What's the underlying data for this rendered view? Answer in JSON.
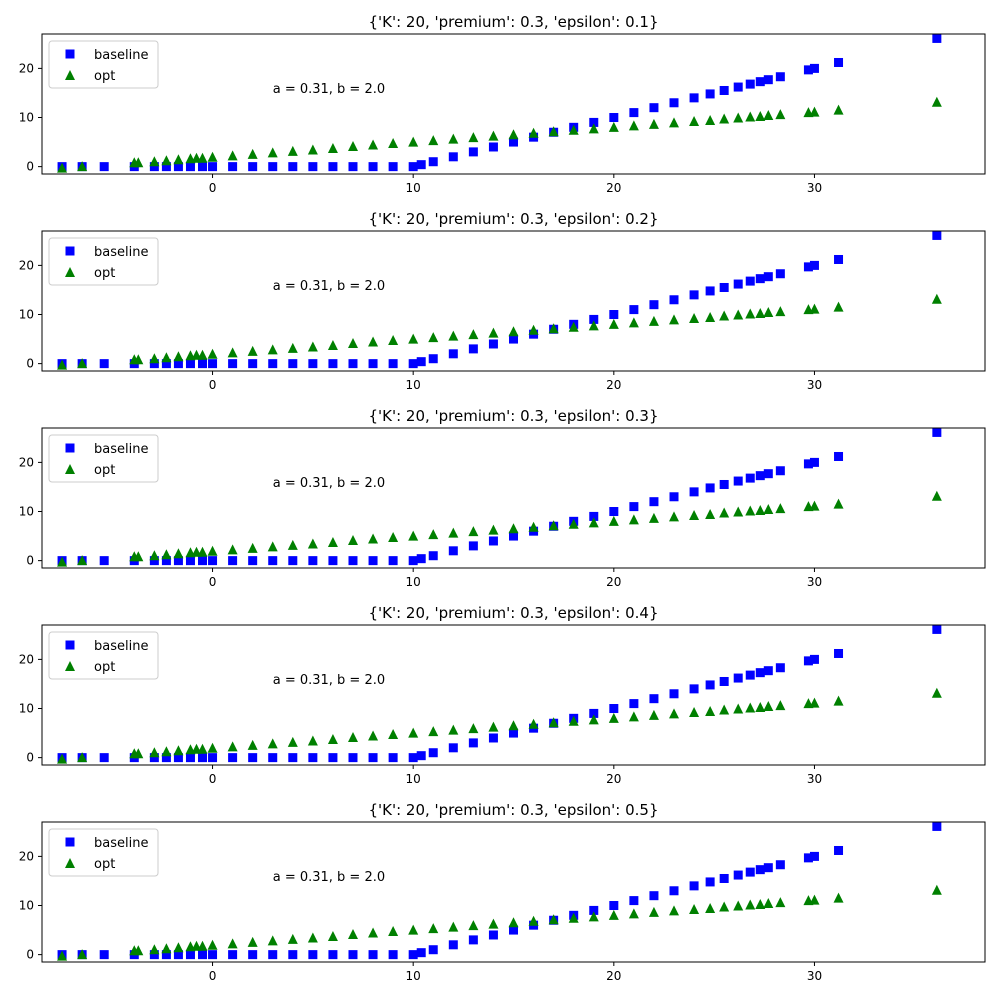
{
  "chart_data": [
    {
      "type": "scatter",
      "title": "{'K': 20, 'premium': 0.3, 'epsilon': 0.1}",
      "annotation": "a = 0.31, b = 2.0",
      "xlabel": "",
      "ylabel": "",
      "xlim": [
        -8.5,
        38.5
      ],
      "ylim": [
        -1.5,
        27
      ],
      "x_ticks": [
        0,
        10,
        20,
        30
      ],
      "y_ticks": [
        0,
        10,
        20
      ],
      "legend": {
        "placement": "upper left"
      },
      "grid": false,
      "series": [
        {
          "name": "baseline",
          "marker": "square",
          "color": "#0000ff",
          "x": [
            -7.5,
            -6.5,
            -5.4,
            -3.9,
            -2.9,
            -2.3,
            -1.7,
            -1.1,
            -0.5,
            0,
            1,
            2,
            3,
            4,
            5,
            6,
            7,
            8,
            9,
            10,
            10.4,
            11,
            12,
            13,
            14,
            15,
            16,
            17,
            18,
            19,
            20,
            21,
            22,
            23,
            24,
            24.8,
            25.5,
            26.2,
            26.8,
            27.3,
            27.7,
            28.3,
            29.7,
            30.0,
            31.2,
            36.1
          ],
          "y": [
            0,
            0,
            0,
            0,
            0,
            0,
            0,
            0,
            0,
            0,
            0,
            0,
            0,
            0,
            0,
            0,
            0,
            0,
            0,
            0,
            0.4,
            1,
            2,
            3,
            4,
            5,
            6,
            7,
            8,
            9,
            10,
            11,
            12,
            13,
            14,
            14.8,
            15.5,
            16.2,
            16.8,
            17.3,
            17.7,
            18.3,
            19.7,
            20.0,
            21.2,
            26.1
          ]
        },
        {
          "name": "opt",
          "marker": "triangle",
          "color": "#008000",
          "x": [
            -7.5,
            -6.5,
            -3.9,
            -3.7,
            -2.9,
            -2.3,
            -1.7,
            -1.1,
            -0.8,
            -0.5,
            0,
            1,
            2,
            3,
            4,
            5,
            6,
            7,
            8,
            9,
            10,
            11,
            12,
            13,
            14,
            15,
            16,
            17,
            18,
            19,
            20,
            21,
            22,
            23,
            24,
            24.8,
            25.5,
            26.2,
            26.8,
            27.3,
            27.7,
            28.3,
            29.7,
            30.0,
            31.2,
            36.1
          ],
          "y": [
            -0.2,
            0.1,
            0.9,
            0.9,
            1.1,
            1.3,
            1.5,
            1.7,
            1.8,
            1.8,
            2.0,
            2.3,
            2.6,
            2.9,
            3.2,
            3.5,
            3.8,
            4.2,
            4.5,
            4.8,
            5.1,
            5.4,
            5.7,
            6.0,
            6.3,
            6.6,
            6.9,
            7.2,
            7.5,
            7.8,
            8.1,
            8.4,
            8.7,
            9.0,
            9.3,
            9.5,
            9.8,
            10.0,
            10.2,
            10.3,
            10.5,
            10.7,
            11.1,
            11.2,
            11.6,
            13.2
          ]
        }
      ]
    },
    {
      "type": "scatter",
      "title": "{'K': 20, 'premium': 0.3, 'epsilon': 0.2}",
      "annotation": "a = 0.31, b = 2.0",
      "xlabel": "",
      "ylabel": "",
      "xlim": [
        -8.5,
        38.5
      ],
      "ylim": [
        -1.5,
        27
      ],
      "x_ticks": [
        0,
        10,
        20,
        30
      ],
      "y_ticks": [
        0,
        10,
        20
      ],
      "legend": {
        "placement": "upper left"
      },
      "grid": false,
      "series": [
        {
          "name": "baseline",
          "marker": "square",
          "color": "#0000ff",
          "x": [
            -7.5,
            -6.5,
            -5.4,
            -3.9,
            -2.9,
            -2.3,
            -1.7,
            -1.1,
            -0.5,
            0,
            1,
            2,
            3,
            4,
            5,
            6,
            7,
            8,
            9,
            10,
            10.4,
            11,
            12,
            13,
            14,
            15,
            16,
            17,
            18,
            19,
            20,
            21,
            22,
            23,
            24,
            24.8,
            25.5,
            26.2,
            26.8,
            27.3,
            27.7,
            28.3,
            29.7,
            30.0,
            31.2,
            36.1
          ],
          "y": [
            0,
            0,
            0,
            0,
            0,
            0,
            0,
            0,
            0,
            0,
            0,
            0,
            0,
            0,
            0,
            0,
            0,
            0,
            0,
            0,
            0.4,
            1,
            2,
            3,
            4,
            5,
            6,
            7,
            8,
            9,
            10,
            11,
            12,
            13,
            14,
            14.8,
            15.5,
            16.2,
            16.8,
            17.3,
            17.7,
            18.3,
            19.7,
            20.0,
            21.2,
            26.1
          ]
        },
        {
          "name": "opt",
          "marker": "triangle",
          "color": "#008000",
          "x": [
            -7.5,
            -6.5,
            -3.9,
            -3.7,
            -2.9,
            -2.3,
            -1.7,
            -1.1,
            -0.8,
            -0.5,
            0,
            1,
            2,
            3,
            4,
            5,
            6,
            7,
            8,
            9,
            10,
            11,
            12,
            13,
            14,
            15,
            16,
            17,
            18,
            19,
            20,
            21,
            22,
            23,
            24,
            24.8,
            25.5,
            26.2,
            26.8,
            27.3,
            27.7,
            28.3,
            29.7,
            30.0,
            31.2,
            36.1
          ],
          "y": [
            -0.2,
            0.1,
            0.9,
            0.9,
            1.1,
            1.3,
            1.5,
            1.7,
            1.8,
            1.8,
            2.0,
            2.3,
            2.6,
            2.9,
            3.2,
            3.5,
            3.8,
            4.2,
            4.5,
            4.8,
            5.1,
            5.4,
            5.7,
            6.0,
            6.3,
            6.6,
            6.9,
            7.2,
            7.5,
            7.8,
            8.1,
            8.4,
            8.7,
            9.0,
            9.3,
            9.5,
            9.8,
            10.0,
            10.2,
            10.3,
            10.5,
            10.7,
            11.1,
            11.2,
            11.6,
            13.2
          ]
        }
      ]
    },
    {
      "type": "scatter",
      "title": "{'K': 20, 'premium': 0.3, 'epsilon': 0.3}",
      "annotation": "a = 0.31, b = 2.0",
      "xlabel": "",
      "ylabel": "",
      "xlim": [
        -8.5,
        38.5
      ],
      "ylim": [
        -1.5,
        27
      ],
      "x_ticks": [
        0,
        10,
        20,
        30
      ],
      "y_ticks": [
        0,
        10,
        20
      ],
      "legend": {
        "placement": "upper left"
      },
      "grid": false,
      "series": [
        {
          "name": "baseline",
          "marker": "square",
          "color": "#0000ff",
          "x": [
            -7.5,
            -6.5,
            -5.4,
            -3.9,
            -2.9,
            -2.3,
            -1.7,
            -1.1,
            -0.5,
            0,
            1,
            2,
            3,
            4,
            5,
            6,
            7,
            8,
            9,
            10,
            10.4,
            11,
            12,
            13,
            14,
            15,
            16,
            17,
            18,
            19,
            20,
            21,
            22,
            23,
            24,
            24.8,
            25.5,
            26.2,
            26.8,
            27.3,
            27.7,
            28.3,
            29.7,
            30.0,
            31.2,
            36.1
          ],
          "y": [
            0,
            0,
            0,
            0,
            0,
            0,
            0,
            0,
            0,
            0,
            0,
            0,
            0,
            0,
            0,
            0,
            0,
            0,
            0,
            0,
            0.4,
            1,
            2,
            3,
            4,
            5,
            6,
            7,
            8,
            9,
            10,
            11,
            12,
            13,
            14,
            14.8,
            15.5,
            16.2,
            16.8,
            17.3,
            17.7,
            18.3,
            19.7,
            20.0,
            21.2,
            26.1
          ]
        },
        {
          "name": "opt",
          "marker": "triangle",
          "color": "#008000",
          "x": [
            -7.5,
            -6.5,
            -3.9,
            -3.7,
            -2.9,
            -2.3,
            -1.7,
            -1.1,
            -0.8,
            -0.5,
            0,
            1,
            2,
            3,
            4,
            5,
            6,
            7,
            8,
            9,
            10,
            11,
            12,
            13,
            14,
            15,
            16,
            17,
            18,
            19,
            20,
            21,
            22,
            23,
            24,
            24.8,
            25.5,
            26.2,
            26.8,
            27.3,
            27.7,
            28.3,
            29.7,
            30.0,
            31.2,
            36.1
          ],
          "y": [
            -0.2,
            0.1,
            0.9,
            0.9,
            1.1,
            1.3,
            1.5,
            1.7,
            1.8,
            1.8,
            2.0,
            2.3,
            2.6,
            2.9,
            3.2,
            3.5,
            3.8,
            4.2,
            4.5,
            4.8,
            5.1,
            5.4,
            5.7,
            6.0,
            6.3,
            6.6,
            6.9,
            7.2,
            7.5,
            7.8,
            8.1,
            8.4,
            8.7,
            9.0,
            9.3,
            9.5,
            9.8,
            10.0,
            10.2,
            10.3,
            10.5,
            10.7,
            11.1,
            11.2,
            11.6,
            13.2
          ]
        }
      ]
    },
    {
      "type": "scatter",
      "title": "{'K': 20, 'premium': 0.3, 'epsilon': 0.4}",
      "annotation": "a = 0.31, b = 2.0",
      "xlabel": "",
      "ylabel": "",
      "xlim": [
        -8.5,
        38.5
      ],
      "ylim": [
        -1.5,
        27
      ],
      "x_ticks": [
        0,
        10,
        20,
        30
      ],
      "y_ticks": [
        0,
        10,
        20
      ],
      "legend": {
        "placement": "upper left"
      },
      "grid": false,
      "series": [
        {
          "name": "baseline",
          "marker": "square",
          "color": "#0000ff",
          "x": [
            -7.5,
            -6.5,
            -5.4,
            -3.9,
            -2.9,
            -2.3,
            -1.7,
            -1.1,
            -0.5,
            0,
            1,
            2,
            3,
            4,
            5,
            6,
            7,
            8,
            9,
            10,
            10.4,
            11,
            12,
            13,
            14,
            15,
            16,
            17,
            18,
            19,
            20,
            21,
            22,
            23,
            24,
            24.8,
            25.5,
            26.2,
            26.8,
            27.3,
            27.7,
            28.3,
            29.7,
            30.0,
            31.2,
            36.1
          ],
          "y": [
            0,
            0,
            0,
            0,
            0,
            0,
            0,
            0,
            0,
            0,
            0,
            0,
            0,
            0,
            0,
            0,
            0,
            0,
            0,
            0,
            0.4,
            1,
            2,
            3,
            4,
            5,
            6,
            7,
            8,
            9,
            10,
            11,
            12,
            13,
            14,
            14.8,
            15.5,
            16.2,
            16.8,
            17.3,
            17.7,
            18.3,
            19.7,
            20.0,
            21.2,
            26.1
          ]
        },
        {
          "name": "opt",
          "marker": "triangle",
          "color": "#008000",
          "x": [
            -7.5,
            -6.5,
            -3.9,
            -3.7,
            -2.9,
            -2.3,
            -1.7,
            -1.1,
            -0.8,
            -0.5,
            0,
            1,
            2,
            3,
            4,
            5,
            6,
            7,
            8,
            9,
            10,
            11,
            12,
            13,
            14,
            15,
            16,
            17,
            18,
            19,
            20,
            21,
            22,
            23,
            24,
            24.8,
            25.5,
            26.2,
            26.8,
            27.3,
            27.7,
            28.3,
            29.7,
            30.0,
            31.2,
            36.1
          ],
          "y": [
            -0.2,
            0.1,
            0.9,
            0.9,
            1.1,
            1.3,
            1.5,
            1.7,
            1.8,
            1.8,
            2.0,
            2.3,
            2.6,
            2.9,
            3.2,
            3.5,
            3.8,
            4.2,
            4.5,
            4.8,
            5.1,
            5.4,
            5.7,
            6.0,
            6.3,
            6.6,
            6.9,
            7.2,
            7.5,
            7.8,
            8.1,
            8.4,
            8.7,
            9.0,
            9.3,
            9.5,
            9.8,
            10.0,
            10.2,
            10.3,
            10.5,
            10.7,
            11.1,
            11.2,
            11.6,
            13.2
          ]
        }
      ]
    },
    {
      "type": "scatter",
      "title": "{'K': 20, 'premium': 0.3, 'epsilon': 0.5}",
      "annotation": "a = 0.31, b = 2.0",
      "xlabel": "",
      "ylabel": "",
      "xlim": [
        -8.5,
        38.5
      ],
      "ylim": [
        -1.5,
        27
      ],
      "x_ticks": [
        0,
        10,
        20,
        30
      ],
      "y_ticks": [
        0,
        10,
        20
      ],
      "legend": {
        "placement": "upper left"
      },
      "grid": false,
      "series": [
        {
          "name": "baseline",
          "marker": "square",
          "color": "#0000ff",
          "x": [
            -7.5,
            -6.5,
            -5.4,
            -3.9,
            -2.9,
            -2.3,
            -1.7,
            -1.1,
            -0.5,
            0,
            1,
            2,
            3,
            4,
            5,
            6,
            7,
            8,
            9,
            10,
            10.4,
            11,
            12,
            13,
            14,
            15,
            16,
            17,
            18,
            19,
            20,
            21,
            22,
            23,
            24,
            24.8,
            25.5,
            26.2,
            26.8,
            27.3,
            27.7,
            28.3,
            29.7,
            30.0,
            31.2,
            36.1
          ],
          "y": [
            0,
            0,
            0,
            0,
            0,
            0,
            0,
            0,
            0,
            0,
            0,
            0,
            0,
            0,
            0,
            0,
            0,
            0,
            0,
            0,
            0.4,
            1,
            2,
            3,
            4,
            5,
            6,
            7,
            8,
            9,
            10,
            11,
            12,
            13,
            14,
            14.8,
            15.5,
            16.2,
            16.8,
            17.3,
            17.7,
            18.3,
            19.7,
            20.0,
            21.2,
            26.1
          ]
        },
        {
          "name": "opt",
          "marker": "triangle",
          "color": "#008000",
          "x": [
            -7.5,
            -6.5,
            -3.9,
            -3.7,
            -2.9,
            -2.3,
            -1.7,
            -1.1,
            -0.8,
            -0.5,
            0,
            1,
            2,
            3,
            4,
            5,
            6,
            7,
            8,
            9,
            10,
            11,
            12,
            13,
            14,
            15,
            16,
            17,
            18,
            19,
            20,
            21,
            22,
            23,
            24,
            24.8,
            25.5,
            26.2,
            26.8,
            27.3,
            27.7,
            28.3,
            29.7,
            30.0,
            31.2,
            36.1
          ],
          "y": [
            -0.2,
            0.1,
            0.9,
            0.9,
            1.1,
            1.3,
            1.5,
            1.7,
            1.8,
            1.8,
            2.0,
            2.3,
            2.6,
            2.9,
            3.2,
            3.5,
            3.8,
            4.2,
            4.5,
            4.8,
            5.1,
            5.4,
            5.7,
            6.0,
            6.3,
            6.6,
            6.9,
            7.2,
            7.5,
            7.8,
            8.1,
            8.4,
            8.7,
            9.0,
            9.3,
            9.5,
            9.8,
            10.0,
            10.2,
            10.3,
            10.5,
            10.7,
            11.1,
            11.2,
            11.6,
            13.2
          ]
        }
      ]
    }
  ]
}
